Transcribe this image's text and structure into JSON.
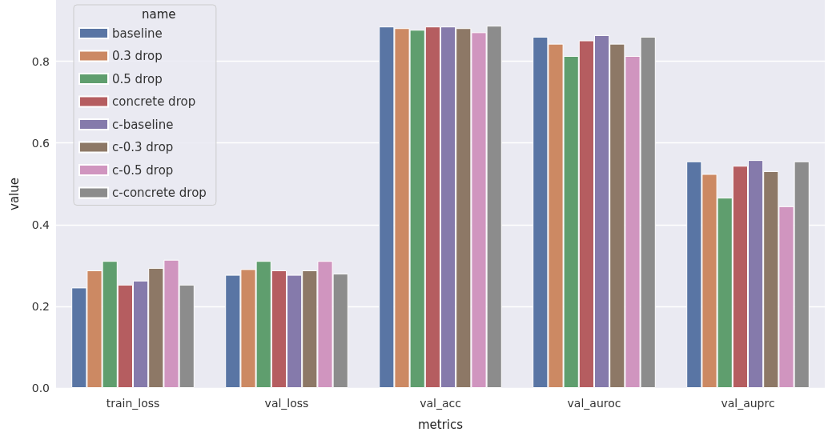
{
  "chart_data": {
    "type": "bar",
    "xlabel": "metrics",
    "ylabel": "value",
    "legend_title": "name",
    "categories": [
      "train_loss",
      "val_loss",
      "val_acc",
      "val_auroc",
      "val_auprc"
    ],
    "series": [
      {
        "name": "baseline",
        "color": "#5975a4",
        "values": [
          0.246,
          0.277,
          0.885,
          0.86,
          0.555
        ]
      },
      {
        "name": "0.3 drop",
        "color": "#cc8963",
        "values": [
          0.288,
          0.291,
          0.881,
          0.843,
          0.524
        ]
      },
      {
        "name": "0.5 drop",
        "color": "#5f9e6e",
        "values": [
          0.311,
          0.311,
          0.877,
          0.813,
          0.466
        ]
      },
      {
        "name": "concrete drop",
        "color": "#b55d60",
        "values": [
          0.253,
          0.288,
          0.885,
          0.851,
          0.544
        ]
      },
      {
        "name": "c-baseline",
        "color": "#857aab",
        "values": [
          0.263,
          0.277,
          0.885,
          0.864,
          0.558
        ]
      },
      {
        "name": "c-0.3 drop",
        "color": "#8d7866",
        "values": [
          0.294,
          0.288,
          0.881,
          0.843,
          0.531
        ]
      },
      {
        "name": "c-0.5 drop",
        "color": "#d095bf",
        "values": [
          0.314,
          0.311,
          0.871,
          0.813,
          0.445
        ]
      },
      {
        "name": "c-concrete drop",
        "color": "#8c8c8c",
        "values": [
          0.253,
          0.28,
          0.887,
          0.86,
          0.555
        ]
      }
    ],
    "ylim": [
      0,
      0.95
    ],
    "yticks": [
      {
        "value": 0,
        "label": "0.0"
      },
      {
        "value": 0.2,
        "label": "0.2"
      },
      {
        "value": 0.4,
        "label": "0.4"
      },
      {
        "value": 0.6,
        "label": "0.6"
      },
      {
        "value": 0.8,
        "label": "0.8"
      }
    ],
    "grid": "y",
    "legend": "top left"
  }
}
